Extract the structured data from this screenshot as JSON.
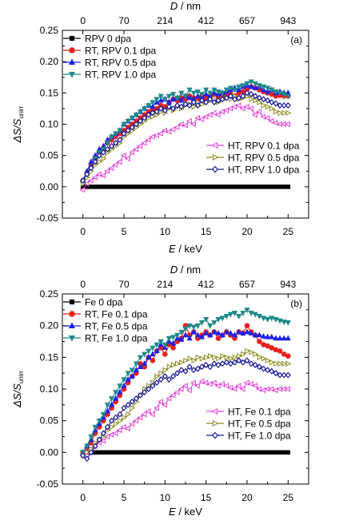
{
  "colors": {
    "base": "#000000",
    "rt01": "#e8211d",
    "rt05": "#1e22e6",
    "rt10": "#1f8a8a",
    "ht01": "#e23fd6",
    "ht05": "#8c8a1e",
    "ht10": "#1a1a9a"
  },
  "chart_data": [
    {
      "type": "line",
      "panel_label": "(a)",
      "xlabel_var": "E",
      "xlabel_unit": " / keV",
      "ylabel_main": "ΔS/S",
      "ylabel_sub": "unirr",
      "top_label_var": "D",
      "top_label_unit": " / nm",
      "top_ticks": [
        {
          "label": "0",
          "x": 0
        },
        {
          "label": "70",
          "x": 5
        },
        {
          "label": "214",
          "x": 10
        },
        {
          "label": "412",
          "x": 15
        },
        {
          "label": "657",
          "x": 20
        },
        {
          "label": "943",
          "x": 25
        }
      ],
      "x_ticks": [
        "0",
        "5",
        "10",
        "15",
        "20",
        "25"
      ],
      "y_ticks": [
        "-0.05",
        "0.00",
        "0.05",
        "0.10",
        "0.15",
        "0.20",
        "0.25"
      ],
      "xlim": [
        -2.5,
        27.5
      ],
      "ylim": [
        -0.05,
        0.25
      ],
      "legend_left": [
        "RPV 0 dpa",
        "RT, RPV 0.1 dpa",
        "RT, RPV 0.5 dpa",
        "RT, RPV 1.0 dpa"
      ],
      "legend_right": [
        "HT, RPV 0.1 dpa",
        "HT, RPV 0.5 dpa",
        "HT, RPV 1.0 dpa"
      ],
      "x": [
        0,
        0.5,
        1,
        1.5,
        2,
        2.5,
        3,
        3.5,
        4,
        4.5,
        5,
        5.5,
        6,
        6.5,
        7,
        7.5,
        8,
        8.5,
        9,
        9.5,
        10,
        10.5,
        11,
        11.5,
        12,
        12.5,
        13,
        13.5,
        14,
        14.5,
        15,
        15.5,
        16,
        16.5,
        17,
        17.5,
        18,
        18.5,
        19,
        19.5,
        20,
        20.5,
        21,
        21.5,
        22,
        22.5,
        23,
        23.5,
        24,
        24.5,
        25
      ],
      "series": [
        {
          "name": "RPV 0 dpa",
          "color_key": "base",
          "marker": "square",
          "values": [
            0,
            0,
            0,
            0,
            0,
            0,
            0,
            0,
            0,
            0,
            0,
            0,
            0,
            0,
            0,
            0,
            0,
            0,
            0,
            0,
            0,
            0,
            0,
            0,
            0,
            0,
            0,
            0,
            0,
            0,
            0,
            0,
            0,
            0,
            0,
            0,
            0,
            0,
            0,
            0,
            0,
            0,
            0,
            0,
            0,
            0,
            0,
            0,
            0,
            0,
            0
          ]
        },
        {
          "name": "RT, RPV 0.1 dpa",
          "color_key": "rt01",
          "marker": "circle",
          "values": [
            0.01,
            0.02,
            0.035,
            0.045,
            0.055,
            0.06,
            0.07,
            0.075,
            0.08,
            0.085,
            0.09,
            0.095,
            0.1,
            0.105,
            0.11,
            0.115,
            0.12,
            0.122,
            0.125,
            0.13,
            0.128,
            0.135,
            0.14,
            0.138,
            0.142,
            0.14,
            0.145,
            0.142,
            0.14,
            0.145,
            0.142,
            0.145,
            0.148,
            0.143,
            0.145,
            0.146,
            0.148,
            0.145,
            0.15,
            0.152,
            0.155,
            0.16,
            0.158,
            0.155,
            0.152,
            0.15,
            0.148,
            0.145,
            0.146,
            0.145,
            0.145
          ]
        },
        {
          "name": "RT, RPV 0.5 dpa",
          "color_key": "rt05",
          "marker": "triangle-up",
          "values": [
            0.01,
            0.025,
            0.04,
            0.05,
            0.06,
            0.065,
            0.075,
            0.08,
            0.085,
            0.09,
            0.1,
            0.105,
            0.11,
            0.115,
            0.12,
            0.125,
            0.13,
            0.128,
            0.135,
            0.138,
            0.14,
            0.135,
            0.14,
            0.142,
            0.138,
            0.145,
            0.142,
            0.14,
            0.145,
            0.142,
            0.148,
            0.145,
            0.15,
            0.148,
            0.15,
            0.152,
            0.155,
            0.158,
            0.155,
            0.16,
            0.162,
            0.16,
            0.158,
            0.16,
            0.155,
            0.152,
            0.155,
            0.15,
            0.152,
            0.15,
            0.15
          ]
        },
        {
          "name": "RT, RPV 1.0 dpa",
          "color_key": "rt10",
          "marker": "triangle-down",
          "values": [
            0.005,
            0.02,
            0.03,
            0.045,
            0.055,
            0.06,
            0.07,
            0.08,
            0.085,
            0.09,
            0.1,
            0.105,
            0.11,
            0.115,
            0.12,
            0.125,
            0.13,
            0.135,
            0.14,
            0.145,
            0.14,
            0.145,
            0.148,
            0.142,
            0.15,
            0.145,
            0.155,
            0.15,
            0.152,
            0.148,
            0.155,
            0.15,
            0.155,
            0.152,
            0.15,
            0.155,
            0.158,
            0.155,
            0.16,
            0.162,
            0.165,
            0.168,
            0.165,
            0.162,
            0.16,
            0.158,
            0.155,
            0.152,
            0.15,
            0.148,
            0.145
          ]
        },
        {
          "name": "HT, RPV 0.1 dpa",
          "color_key": "ht01",
          "marker": "triangle-left",
          "values": [
            -0.005,
            0.005,
            0.01,
            0.015,
            0.02,
            0.018,
            0.025,
            0.03,
            0.035,
            0.04,
            0.05,
            0.045,
            0.055,
            0.06,
            0.065,
            0.07,
            0.075,
            0.08,
            0.082,
            0.085,
            0.09,
            0.088,
            0.092,
            0.095,
            0.1,
            0.098,
            0.105,
            0.1,
            0.11,
            0.108,
            0.112,
            0.115,
            0.118,
            0.115,
            0.12,
            0.122,
            0.125,
            0.128,
            0.13,
            0.125,
            0.128,
            0.125,
            0.115,
            0.12,
            0.112,
            0.11,
            0.105,
            0.102,
            0.1,
            0.1,
            0.1
          ]
        },
        {
          "name": "HT, RPV 0.5 dpa",
          "color_key": "ht05",
          "marker": "triangle-right",
          "values": [
            0.005,
            0.015,
            0.025,
            0.035,
            0.04,
            0.045,
            0.055,
            0.06,
            0.065,
            0.07,
            0.08,
            0.085,
            0.09,
            0.095,
            0.1,
            0.105,
            0.11,
            0.112,
            0.115,
            0.12,
            0.118,
            0.125,
            0.122,
            0.128,
            0.125,
            0.13,
            0.132,
            0.128,
            0.135,
            0.132,
            0.135,
            0.138,
            0.14,
            0.135,
            0.14,
            0.142,
            0.14,
            0.145,
            0.14,
            0.142,
            0.145,
            0.14,
            0.138,
            0.135,
            0.13,
            0.128,
            0.125,
            0.12,
            0.118,
            0.118,
            0.118
          ]
        },
        {
          "name": "HT, RPV 1.0 dpa",
          "color_key": "ht10",
          "marker": "diamond",
          "values": [
            0.01,
            0.02,
            0.03,
            0.04,
            0.05,
            0.055,
            0.06,
            0.065,
            0.07,
            0.075,
            0.085,
            0.09,
            0.095,
            0.1,
            0.105,
            0.11,
            0.115,
            0.118,
            0.12,
            0.125,
            0.122,
            0.128,
            0.125,
            0.13,
            0.128,
            0.132,
            0.13,
            0.135,
            0.13,
            0.138,
            0.135,
            0.14,
            0.135,
            0.138,
            0.14,
            0.142,
            0.145,
            0.14,
            0.142,
            0.145,
            0.15,
            0.148,
            0.145,
            0.142,
            0.14,
            0.138,
            0.135,
            0.133,
            0.13,
            0.13,
            0.13
          ]
        }
      ]
    },
    {
      "type": "line",
      "panel_label": "(b)",
      "xlabel_var": "E",
      "xlabel_unit": " / keV",
      "ylabel_main": "ΔS/S",
      "ylabel_sub": "unirr",
      "top_label_var": "D",
      "top_label_unit": " / nm",
      "top_ticks": [
        {
          "label": "0",
          "x": 0
        },
        {
          "label": "70",
          "x": 5
        },
        {
          "label": "214",
          "x": 10
        },
        {
          "label": "412",
          "x": 15
        },
        {
          "label": "657",
          "x": 20
        },
        {
          "label": "943",
          "x": 25
        }
      ],
      "x_ticks": [
        "0",
        "5",
        "10",
        "15",
        "20",
        "25"
      ],
      "y_ticks": [
        "-0.05",
        "0.00",
        "0.05",
        "0.10",
        "0.15",
        "0.20",
        "0.25"
      ],
      "xlim": [
        -2.5,
        27.5
      ],
      "ylim": [
        -0.05,
        0.25
      ],
      "legend_left": [
        "Fe 0 dpa",
        "RT, Fe 0.1 dpa",
        "RT, Fe 0.5 dpa",
        "RT, Fe 1.0 dpa"
      ],
      "legend_right": [
        "HT, Fe 0.1 dpa",
        "HT, Fe 0.5 dpa",
        "HT, Fe 1.0 dpa"
      ],
      "x": [
        0,
        0.5,
        1,
        1.5,
        2,
        2.5,
        3,
        3.5,
        4,
        4.5,
        5,
        5.5,
        6,
        6.5,
        7,
        7.5,
        8,
        8.5,
        9,
        9.5,
        10,
        10.5,
        11,
        11.5,
        12,
        12.5,
        13,
        13.5,
        14,
        14.5,
        15,
        15.5,
        16,
        16.5,
        17,
        17.5,
        18,
        18.5,
        19,
        19.5,
        20,
        20.5,
        21,
        21.5,
        22,
        22.5,
        23,
        23.5,
        24,
        24.5,
        25
      ],
      "series": [
        {
          "name": "Fe 0 dpa",
          "color_key": "base",
          "marker": "square",
          "values": [
            0,
            0,
            0,
            0,
            0,
            0,
            0,
            0,
            0,
            0,
            0,
            0,
            0,
            0,
            0,
            0,
            0,
            0,
            0,
            0,
            0,
            0,
            0,
            0,
            0,
            0,
            0,
            0,
            0,
            0,
            0,
            0,
            0,
            0,
            0,
            0,
            0,
            0,
            0,
            0,
            0,
            0,
            0,
            0,
            0,
            0,
            0,
            0,
            0,
            0,
            0
          ]
        },
        {
          "name": "RT, Fe 0.1 dpa",
          "color_key": "rt01",
          "marker": "circle",
          "values": [
            0.0,
            0.005,
            0.015,
            0.03,
            0.04,
            0.05,
            0.06,
            0.07,
            0.08,
            0.09,
            0.1,
            0.11,
            0.12,
            0.125,
            0.14,
            0.135,
            0.15,
            0.145,
            0.16,
            0.165,
            0.155,
            0.17,
            0.165,
            0.175,
            0.18,
            0.2,
            0.185,
            0.19,
            0.18,
            0.185,
            0.19,
            0.185,
            0.19,
            0.18,
            0.185,
            0.19,
            0.185,
            0.18,
            0.19,
            0.188,
            0.2,
            0.19,
            0.185,
            0.175,
            0.17,
            0.168,
            0.165,
            0.162,
            0.16,
            0.155,
            0.152
          ]
        },
        {
          "name": "RT, Fe 0.5 dpa",
          "color_key": "rt05",
          "marker": "triangle-up",
          "values": [
            0.0,
            0.01,
            0.02,
            0.035,
            0.045,
            0.055,
            0.065,
            0.075,
            0.085,
            0.095,
            0.105,
            0.115,
            0.12,
            0.13,
            0.135,
            0.14,
            0.15,
            0.155,
            0.16,
            0.17,
            0.165,
            0.175,
            0.172,
            0.18,
            0.178,
            0.185,
            0.18,
            0.19,
            0.185,
            0.182,
            0.188,
            0.185,
            0.19,
            0.188,
            0.185,
            0.19,
            0.188,
            0.185,
            0.19,
            0.188,
            0.19,
            0.188,
            0.185,
            0.185,
            0.183,
            0.182,
            0.182,
            0.18,
            0.18,
            0.18,
            0.18
          ]
        },
        {
          "name": "RT, Fe 1.0 dpa",
          "color_key": "rt10",
          "marker": "triangle-down",
          "values": [
            0.0,
            0.01,
            0.025,
            0.04,
            0.05,
            0.06,
            0.075,
            0.085,
            0.095,
            0.105,
            0.115,
            0.125,
            0.13,
            0.14,
            0.15,
            0.155,
            0.16,
            0.165,
            0.17,
            0.175,
            0.17,
            0.18,
            0.182,
            0.185,
            0.19,
            0.195,
            0.2,
            0.198,
            0.2,
            0.205,
            0.21,
            0.2,
            0.205,
            0.21,
            0.212,
            0.215,
            0.218,
            0.22,
            0.215,
            0.22,
            0.225,
            0.22,
            0.218,
            0.215,
            0.212,
            0.21,
            0.212,
            0.21,
            0.208,
            0.206,
            0.205
          ]
        },
        {
          "name": "HT, Fe 0.1 dpa",
          "color_key": "ht01",
          "marker": "triangle-left",
          "values": [
            -0.005,
            0.0,
            0.005,
            0.01,
            0.015,
            0.018,
            0.025,
            0.028,
            0.03,
            0.035,
            0.04,
            0.038,
            0.045,
            0.05,
            0.055,
            0.06,
            0.065,
            0.06,
            0.07,
            0.08,
            0.075,
            0.085,
            0.09,
            0.095,
            0.1,
            0.105,
            0.098,
            0.11,
            0.105,
            0.112,
            0.11,
            0.108,
            0.11,
            0.105,
            0.108,
            0.105,
            0.102,
            0.1,
            0.105,
            0.1,
            0.11,
            0.108,
            0.105,
            0.1,
            0.098,
            0.1,
            0.1,
            0.098,
            0.1,
            0.1,
            0.1
          ]
        },
        {
          "name": "HT, Fe 0.5 dpa",
          "color_key": "ht05",
          "marker": "triangle-right",
          "values": [
            -0.005,
            0.0,
            0.005,
            0.015,
            0.02,
            0.025,
            0.035,
            0.04,
            0.045,
            0.05,
            0.055,
            0.06,
            0.07,
            0.08,
            0.09,
            0.1,
            0.105,
            0.11,
            0.12,
            0.125,
            0.13,
            0.135,
            0.138,
            0.14,
            0.142,
            0.145,
            0.148,
            0.145,
            0.15,
            0.148,
            0.15,
            0.152,
            0.15,
            0.148,
            0.152,
            0.15,
            0.148,
            0.15,
            0.152,
            0.155,
            0.16,
            0.158,
            0.155,
            0.15,
            0.148,
            0.145,
            0.142,
            0.14,
            0.14,
            0.14,
            0.14
          ]
        },
        {
          "name": "HT, Fe 1.0 dpa",
          "color_key": "ht10",
          "marker": "diamond",
          "values": [
            -0.005,
            -0.01,
            0.0,
            0.01,
            0.02,
            0.03,
            0.04,
            0.05,
            0.055,
            0.06,
            0.07,
            0.075,
            0.08,
            0.085,
            0.09,
            0.095,
            0.1,
            0.105,
            0.11,
            0.115,
            0.12,
            0.115,
            0.12,
            0.125,
            0.13,
            0.128,
            0.135,
            0.13,
            0.132,
            0.135,
            0.138,
            0.135,
            0.14,
            0.138,
            0.14,
            0.142,
            0.14,
            0.142,
            0.145,
            0.142,
            0.145,
            0.14,
            0.138,
            0.135,
            0.132,
            0.13,
            0.128,
            0.125,
            0.122,
            0.122,
            0.122
          ]
        }
      ]
    }
  ]
}
